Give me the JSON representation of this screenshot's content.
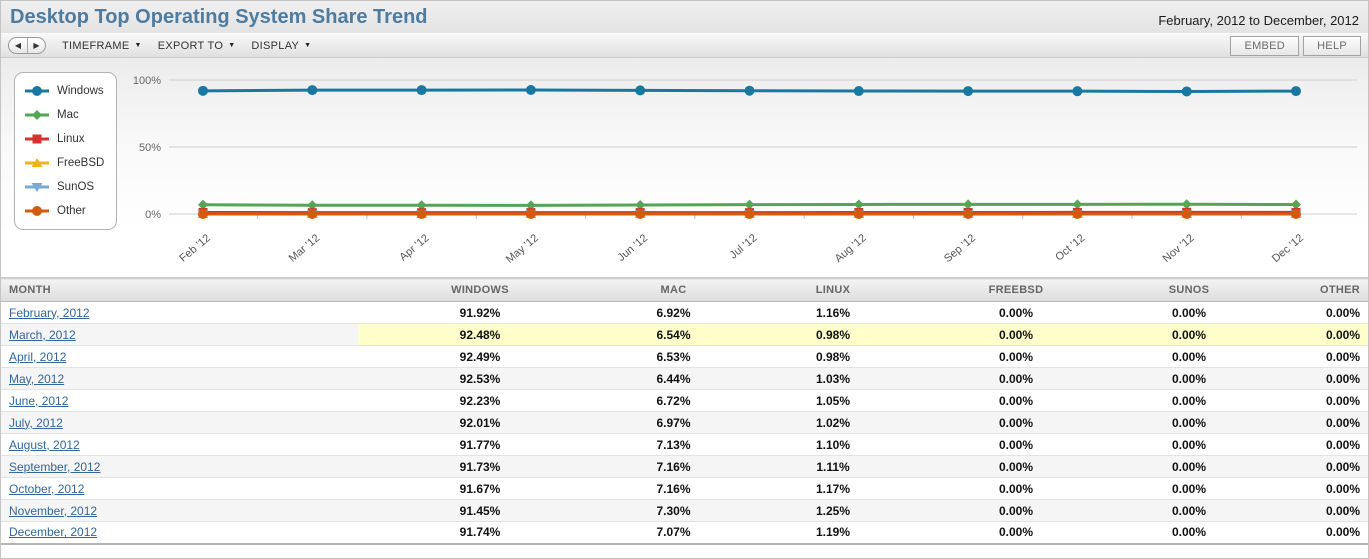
{
  "header": {
    "title": "Desktop Top Operating System Share Trend",
    "date_range": "February, 2012 to December, 2012"
  },
  "toolbar": {
    "nav": {
      "back_icon": "◀",
      "forward_icon": "▶"
    },
    "caret_icon": "▼",
    "menus": [
      {
        "label": "TIMEFRAME"
      },
      {
        "label": "EXPORT TO"
      },
      {
        "label": "DISPLAY"
      }
    ],
    "buttons": [
      {
        "label": "EMBED"
      },
      {
        "label": "HELP"
      }
    ]
  },
  "chart_data": {
    "type": "line",
    "x": [
      "Feb '12",
      "Mar '12",
      "Apr '12",
      "May '12",
      "Jun '12",
      "Jul '12",
      "Aug '12",
      "Sep '12",
      "Oct '12",
      "Nov '12",
      "Dec '12"
    ],
    "series": [
      {
        "name": "Windows",
        "color": "#1878a0",
        "marker": "circle",
        "values": [
          91.92,
          92.48,
          92.49,
          92.53,
          92.23,
          92.01,
          91.77,
          91.73,
          91.67,
          91.45,
          91.74
        ]
      },
      {
        "name": "Mac",
        "color": "#55a556",
        "marker": "diamond",
        "values": [
          6.92,
          6.54,
          6.53,
          6.44,
          6.72,
          6.97,
          7.13,
          7.16,
          7.16,
          7.3,
          7.07
        ]
      },
      {
        "name": "Linux",
        "color": "#d23430",
        "marker": "square",
        "values": [
          1.16,
          0.98,
          0.98,
          1.03,
          1.05,
          1.02,
          1.1,
          1.11,
          1.17,
          1.25,
          1.19
        ]
      },
      {
        "name": "FreeBSD",
        "color": "#efb320",
        "marker": "triangle-up",
        "values": [
          0,
          0,
          0,
          0,
          0,
          0,
          0,
          0,
          0,
          0,
          0
        ]
      },
      {
        "name": "SunOS",
        "color": "#77aad4",
        "marker": "triangle-down",
        "values": [
          0,
          0,
          0,
          0,
          0,
          0,
          0,
          0,
          0,
          0,
          0
        ]
      },
      {
        "name": "Other",
        "color": "#d35b10",
        "marker": "circle",
        "values": [
          0,
          0,
          0,
          0,
          0,
          0,
          0,
          0,
          0,
          0,
          0
        ]
      }
    ],
    "ylim": [
      0,
      100
    ],
    "yticks": [
      "0%",
      "50%",
      "100%"
    ],
    "grid": true,
    "legend_position": "left"
  },
  "table": {
    "columns": [
      "MONTH",
      "WINDOWS",
      "MAC",
      "LINUX",
      "FREEBSD",
      "SUNOS",
      "OTHER"
    ],
    "rows": [
      {
        "month": "February, 2012",
        "values": [
          "91.92%",
          "6.92%",
          "1.16%",
          "0.00%",
          "0.00%",
          "0.00%"
        ],
        "highlight": false
      },
      {
        "month": "March, 2012",
        "values": [
          "92.48%",
          "6.54%",
          "0.98%",
          "0.00%",
          "0.00%",
          "0.00%"
        ],
        "highlight": true
      },
      {
        "month": "April, 2012",
        "values": [
          "92.49%",
          "6.53%",
          "0.98%",
          "0.00%",
          "0.00%",
          "0.00%"
        ],
        "highlight": false
      },
      {
        "month": "May, 2012",
        "values": [
          "92.53%",
          "6.44%",
          "1.03%",
          "0.00%",
          "0.00%",
          "0.00%"
        ],
        "highlight": false
      },
      {
        "month": "June, 2012",
        "values": [
          "92.23%",
          "6.72%",
          "1.05%",
          "0.00%",
          "0.00%",
          "0.00%"
        ],
        "highlight": false
      },
      {
        "month": "July, 2012",
        "values": [
          "92.01%",
          "6.97%",
          "1.02%",
          "0.00%",
          "0.00%",
          "0.00%"
        ],
        "highlight": false
      },
      {
        "month": "August, 2012",
        "values": [
          "91.77%",
          "7.13%",
          "1.10%",
          "0.00%",
          "0.00%",
          "0.00%"
        ],
        "highlight": false
      },
      {
        "month": "September, 2012",
        "values": [
          "91.73%",
          "7.16%",
          "1.11%",
          "0.00%",
          "0.00%",
          "0.00%"
        ],
        "highlight": false
      },
      {
        "month": "October, 2012",
        "values": [
          "91.67%",
          "7.16%",
          "1.17%",
          "0.00%",
          "0.00%",
          "0.00%"
        ],
        "highlight": false
      },
      {
        "month": "November, 2012",
        "values": [
          "91.45%",
          "7.30%",
          "1.25%",
          "0.00%",
          "0.00%",
          "0.00%"
        ],
        "highlight": false
      },
      {
        "month": "December, 2012",
        "values": [
          "91.74%",
          "7.07%",
          "1.19%",
          "0.00%",
          "0.00%",
          "0.00%"
        ],
        "highlight": false
      }
    ]
  }
}
